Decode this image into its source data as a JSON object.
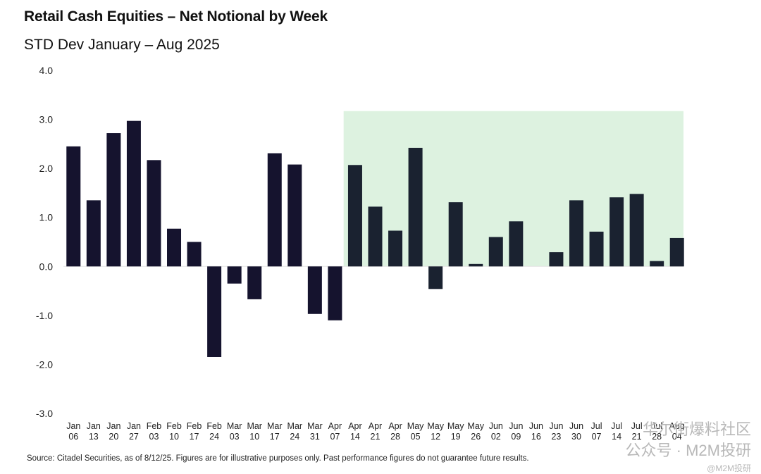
{
  "header": {
    "title": "Retail Cash Equities – Net Notional by Week",
    "subtitle": "STD Dev January – Aug 2025"
  },
  "footer": {
    "source": "Source:  Citadel Securities, as of 8/12/25. Figures are for illustrative purposes only. Past performance figures do not guarantee future results."
  },
  "watermark": {
    "line1": "华尔街爆料社区",
    "line2": "公众号 · M2M投研",
    "line3": "@M2M投研"
  },
  "colors": {
    "bar": "#15132e",
    "bar_highlight": "#1a2230",
    "highlight_region": "#ddf2e0"
  },
  "chart_data": {
    "type": "bar",
    "title": "Retail Cash Equities – Net Notional by Week",
    "subtitle": "STD Dev January – Aug 2025",
    "xlabel": "",
    "ylabel": "",
    "ylim": [
      -3.0,
      4.0
    ],
    "yticks": [
      "4.0",
      "3.0",
      "2.0",
      "1.0",
      "0.0",
      "-1.0",
      "-2.0",
      "-3.0"
    ],
    "grid": false,
    "legend": "none",
    "categories": [
      [
        "Jan",
        "06"
      ],
      [
        "Jan",
        "13"
      ],
      [
        "Jan",
        "20"
      ],
      [
        "Jan",
        "27"
      ],
      [
        "Feb",
        "03"
      ],
      [
        "Feb",
        "10"
      ],
      [
        "Feb",
        "17"
      ],
      [
        "Feb",
        "24"
      ],
      [
        "Mar",
        "03"
      ],
      [
        "Mar",
        "10"
      ],
      [
        "Mar",
        "17"
      ],
      [
        "Mar",
        "24"
      ],
      [
        "Mar",
        "31"
      ],
      [
        "Apr",
        "07"
      ],
      [
        "Apr",
        "14"
      ],
      [
        "Apr",
        "21"
      ],
      [
        "Apr",
        "28"
      ],
      [
        "May",
        "05"
      ],
      [
        "May",
        "12"
      ],
      [
        "May",
        "19"
      ],
      [
        "May",
        "26"
      ],
      [
        "Jun",
        "02"
      ],
      [
        "Jun",
        "09"
      ],
      [
        "Jun",
        "16"
      ],
      [
        "Jun",
        "23"
      ],
      [
        "Jun",
        "30"
      ],
      [
        "Jul",
        "07"
      ],
      [
        "Jul",
        "14"
      ],
      [
        "Jul",
        "21"
      ],
      [
        "Jul",
        "28"
      ],
      [
        "Aug",
        "04"
      ]
    ],
    "values": [
      2.45,
      1.35,
      2.72,
      2.97,
      2.17,
      0.77,
      0.5,
      -1.85,
      -0.35,
      -0.67,
      2.31,
      2.08,
      -0.97,
      -1.1,
      2.07,
      1.22,
      0.73,
      2.42,
      -0.46,
      1.31,
      0.05,
      0.6,
      0.92,
      0.0,
      0.29,
      1.35,
      0.71,
      1.41,
      1.48,
      0.11,
      0.58
    ],
    "highlight_start_index": 14,
    "highlight_top_value": 3.17
  }
}
